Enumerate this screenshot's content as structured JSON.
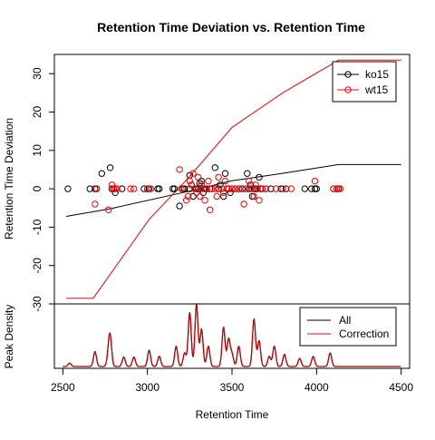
{
  "chart_data": [
    {
      "type": "scatter",
      "title": "Retention Time Deviation vs. Retention Time",
      "xlabel": "",
      "ylabel": "Retention Time Deviation",
      "xlim": [
        2450,
        4550
      ],
      "ylim": [
        -30,
        35
      ],
      "yticks": [
        -30,
        -20,
        -10,
        0,
        10,
        20,
        30
      ],
      "legend": {
        "placement": "top-right",
        "entries": [
          "ko15",
          "wt15"
        ]
      },
      "series": [
        {
          "name": "ko15",
          "color": "#000000",
          "line": [
            [
              2520,
              -7.2
            ],
            [
              2780,
              -5.2
            ],
            [
              3260,
              -0.5
            ],
            [
              3500,
              2.1
            ],
            [
              3780,
              3.9
            ],
            [
              4130,
              6.3
            ],
            [
              4500,
              6.3
            ]
          ],
          "points": [
            [
              2530,
              0
            ],
            [
              2660,
              0
            ],
            [
              2690,
              0
            ],
            [
              2700,
              0
            ],
            [
              2730,
              4
            ],
            [
              2780,
              5.5
            ],
            [
              2790,
              0
            ],
            [
              2800,
              0
            ],
            [
              2810,
              -1
            ],
            [
              2850,
              0
            ],
            [
              2980,
              0
            ],
            [
              3000,
              0
            ],
            [
              3010,
              0
            ],
            [
              3060,
              0
            ],
            [
              3070,
              0
            ],
            [
              3150,
              0
            ],
            [
              3160,
              0
            ],
            [
              3190,
              -4.5
            ],
            [
              3210,
              0
            ],
            [
              3220,
              0
            ],
            [
              3250,
              0
            ],
            [
              3250,
              3.5
            ],
            [
              3260,
              1
            ],
            [
              3270,
              -2
            ],
            [
              3280,
              0
            ],
            [
              3290,
              0
            ],
            [
              3300,
              0
            ],
            [
              3310,
              1.5
            ],
            [
              3320,
              2
            ],
            [
              3330,
              -1
            ],
            [
              3340,
              0
            ],
            [
              3350,
              0
            ],
            [
              3370,
              0
            ],
            [
              3400,
              5.5
            ],
            [
              3420,
              0
            ],
            [
              3430,
              1
            ],
            [
              3450,
              -2
            ],
            [
              3460,
              4
            ],
            [
              3470,
              0
            ],
            [
              3480,
              0
            ],
            [
              3490,
              -1
            ],
            [
              3500,
              0
            ],
            [
              3520,
              0
            ],
            [
              3540,
              0
            ],
            [
              3560,
              0
            ],
            [
              3580,
              0
            ],
            [
              3590,
              4
            ],
            [
              3600,
              0
            ],
            [
              3610,
              1
            ],
            [
              3620,
              -2
            ],
            [
              3630,
              0
            ],
            [
              3640,
              0
            ],
            [
              3650,
              0
            ],
            [
              3660,
              3
            ],
            [
              3670,
              0
            ],
            [
              3700,
              0
            ],
            [
              3730,
              0
            ],
            [
              3790,
              0
            ],
            [
              3820,
              0
            ],
            [
              3930,
              0
            ],
            [
              3970,
              0
            ],
            [
              3990,
              0
            ],
            [
              4000,
              0
            ],
            [
              4100,
              0
            ],
            [
              4120,
              0
            ],
            [
              4130,
              0
            ]
          ]
        },
        {
          "name": "wt15",
          "color": "#ff0000",
          "line": [
            [
              2520,
              -28.5
            ],
            [
              2680,
              -28.5
            ],
            [
              3010,
              -8
            ],
            [
              3250,
              3.2
            ],
            [
              3500,
              16
            ],
            [
              3800,
              25
            ],
            [
              4130,
              33.5
            ],
            [
              4500,
              33.5
            ]
          ],
          "points": [
            [
              2690,
              -4
            ],
            [
              2700,
              0
            ],
            [
              2770,
              -5.5
            ],
            [
              2790,
              1
            ],
            [
              2800,
              0
            ],
            [
              2810,
              0
            ],
            [
              2820,
              0
            ],
            [
              2900,
              0
            ],
            [
              2920,
              0
            ],
            [
              3000,
              0
            ],
            [
              3020,
              0
            ],
            [
              3190,
              5
            ],
            [
              3200,
              0
            ],
            [
              3230,
              -3
            ],
            [
              3240,
              -2
            ],
            [
              3250,
              2
            ],
            [
              3260,
              1
            ],
            [
              3270,
              4
            ],
            [
              3280,
              0
            ],
            [
              3290,
              -1
            ],
            [
              3300,
              3
            ],
            [
              3310,
              -2
            ],
            [
              3320,
              1
            ],
            [
              3330,
              0
            ],
            [
              3340,
              -3
            ],
            [
              3350,
              0
            ],
            [
              3360,
              2
            ],
            [
              3370,
              -5.5
            ],
            [
              3380,
              0
            ],
            [
              3400,
              0
            ],
            [
              3410,
              -2
            ],
            [
              3420,
              3
            ],
            [
              3440,
              0
            ],
            [
              3450,
              -1
            ],
            [
              3460,
              2
            ],
            [
              3470,
              0
            ],
            [
              3480,
              0
            ],
            [
              3500,
              0
            ],
            [
              3520,
              0
            ],
            [
              3540,
              0
            ],
            [
              3570,
              -4
            ],
            [
              3580,
              0
            ],
            [
              3600,
              2
            ],
            [
              3610,
              0
            ],
            [
              3620,
              0
            ],
            [
              3630,
              -2
            ],
            [
              3640,
              1
            ],
            [
              3650,
              0
            ],
            [
              3660,
              -3
            ],
            [
              3680,
              0
            ],
            [
              3700,
              0
            ],
            [
              3760,
              0
            ],
            [
              3800,
              0
            ],
            [
              3850,
              0
            ],
            [
              3990,
              2
            ],
            [
              4100,
              0
            ],
            [
              4120,
              0
            ],
            [
              4140,
              0
            ]
          ]
        }
      ]
    },
    {
      "type": "line",
      "title": "",
      "xlabel": "Retention Time",
      "ylabel": "Peak Density",
      "xlim": [
        2450,
        4550
      ],
      "xticks": [
        2500,
        3000,
        3500,
        4000,
        4500
      ],
      "legend": {
        "placement": "top-right",
        "entries": [
          "All",
          "Correction"
        ]
      },
      "series": [
        {
          "name": "All",
          "color": "#000000"
        },
        {
          "name": "Correction",
          "color": "#ff0000"
        }
      ],
      "peaks": [
        [
          2540,
          0.05
        ],
        [
          2690,
          0.22
        ],
        [
          2770,
          0.16
        ],
        [
          2780,
          0.4
        ],
        [
          2860,
          0.14
        ],
        [
          2920,
          0.14
        ],
        [
          3010,
          0.24
        ],
        [
          3070,
          0.15
        ],
        [
          3170,
          0.3
        ],
        [
          3220,
          0.2
        ],
        [
          3250,
          0.8
        ],
        [
          3290,
          0.92
        ],
        [
          3320,
          0.55
        ],
        [
          3360,
          0.3
        ],
        [
          3450,
          0.58
        ],
        [
          3480,
          0.4
        ],
        [
          3500,
          0.18
        ],
        [
          3540,
          0.3
        ],
        [
          3630,
          0.7
        ],
        [
          3660,
          0.38
        ],
        [
          3720,
          0.15
        ],
        [
          3750,
          0.3
        ],
        [
          3810,
          0.18
        ],
        [
          3900,
          0.12
        ],
        [
          3980,
          0.15
        ],
        [
          4080,
          0.2
        ]
      ]
    }
  ]
}
